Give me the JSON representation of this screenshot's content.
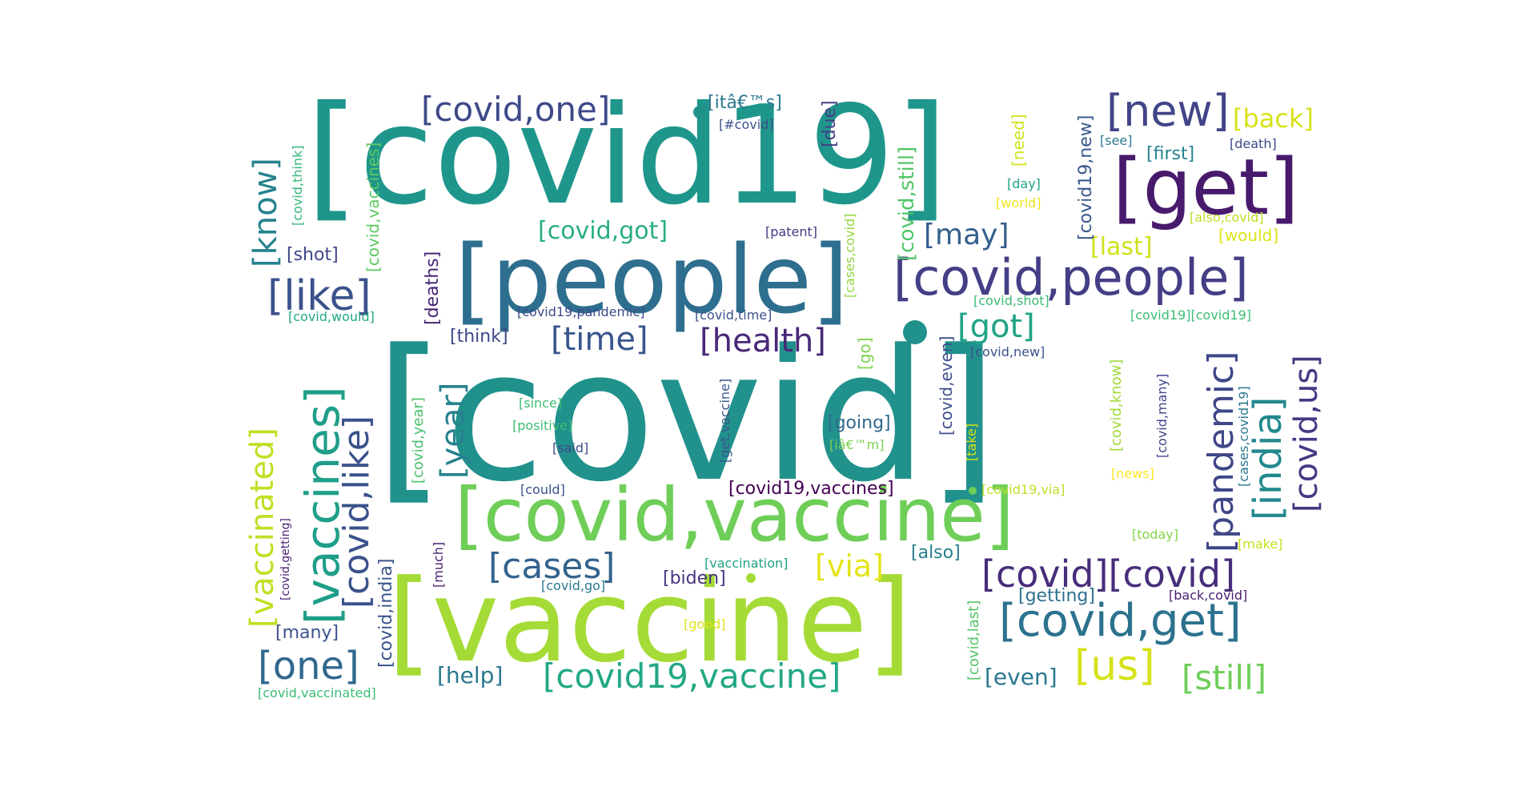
{
  "words": [
    {
      "text": "[covid]",
      "color": "#21918c"
    },
    {
      "text": "[covid19]",
      "color": "#1f968b"
    },
    {
      "text": "[vaccine]",
      "color": "#a5db36"
    },
    {
      "text": "[people]",
      "color": "#2e6e8e"
    },
    {
      "text": "[covid,vaccine]",
      "color": "#6ece58"
    },
    {
      "text": "[get]",
      "color": "#481a6c"
    },
    {
      "text": "[covid,people]",
      "color": "#433e85"
    },
    {
      "text": "[covid,get]",
      "color": "#2c728e"
    },
    {
      "text": "[covid][covid]",
      "color": "#472d7b"
    },
    {
      "text": "[new]",
      "color": "#414487"
    },
    {
      "text": "[like]",
      "color": "#3b528b"
    },
    {
      "text": "[covid,one]",
      "color": "#3e4989"
    },
    {
      "text": "[vaccines]",
      "color": "#1f9e89"
    },
    {
      "text": "[covid,like]",
      "color": "#3b528b"
    },
    {
      "text": "[covid19,vaccine]",
      "color": "#22a884"
    },
    {
      "text": "[one]",
      "color": "#31688e"
    },
    {
      "text": "[us]",
      "color": "#d5e21a"
    },
    {
      "text": "[still]",
      "color": "#6ece58"
    },
    {
      "text": "[cases]",
      "color": "#33638d"
    },
    {
      "text": "[health]",
      "color": "#482878"
    },
    {
      "text": "[time]",
      "color": "#39568c"
    },
    {
      "text": "[got]",
      "color": "#20a386"
    },
    {
      "text": "[may]",
      "color": "#355f8d"
    },
    {
      "text": "[via]",
      "color": "#e4e419"
    },
    {
      "text": "[india]",
      "color": "#23888e"
    },
    {
      "text": "[covid,us]",
      "color": "#443983"
    },
    {
      "text": "[pandemic]",
      "color": "#3f4788"
    },
    {
      "text": "[vaccinated]",
      "color": "#c2df23"
    },
    {
      "text": "[know]",
      "color": "#26828e"
    },
    {
      "text": "[year]",
      "color": "#26828e"
    },
    {
      "text": "[covid,got]",
      "color": "#29af7f"
    },
    {
      "text": "[back]",
      "color": "#d8e219"
    },
    {
      "text": "[last]",
      "color": "#d0e11c"
    },
    {
      "text": "[covid,still]",
      "color": "#52c569"
    },
    {
      "text": "[covid19,new]",
      "color": "#38598c"
    },
    {
      "text": "[due]",
      "color": "#424086"
    },
    {
      "text": "[help]",
      "color": "#2a788e"
    },
    {
      "text": "[even]",
      "color": "#2a788e"
    },
    {
      "text": "[covid,india]",
      "color": "#3a548c"
    },
    {
      "text": "[deaths]",
      "color": "#482475"
    },
    {
      "text": "[covid,vaccines]",
      "color": "#5ec962"
    },
    {
      "text": "[itâ€™s]",
      "color": "#2a788e"
    },
    {
      "text": "[biden]",
      "color": "#46337e"
    },
    {
      "text": "[covid19,vaccines]",
      "color": "#440154"
    },
    {
      "text": "[getting]",
      "color": "#2d708e"
    },
    {
      "text": "[going]",
      "color": "#31688e"
    },
    {
      "text": "[think]",
      "color": "#3e4989"
    },
    {
      "text": "[many]",
      "color": "#3b528b"
    },
    {
      "text": "[first]",
      "color": "#25848e"
    },
    {
      "text": "[shot]",
      "color": "#3f4788"
    },
    {
      "text": "[also]",
      "color": "#287d8e"
    },
    {
      "text": "[covid,year]",
      "color": "#4ac16d"
    },
    {
      "text": "[covid,even]",
      "color": "#3d4e8a"
    },
    {
      "text": "[covid,know]",
      "color": "#a0da39"
    },
    {
      "text": "[need]",
      "color": "#d2e21b"
    },
    {
      "text": "[would]",
      "color": "#dde318"
    },
    {
      "text": "[go]",
      "color": "#7fd34e"
    },
    {
      "text": "[covid,new]",
      "color": "#3b528b"
    },
    {
      "text": "[cases,covid]",
      "color": "#93d741"
    },
    {
      "text": "[covid,think]",
      "color": "#35b779"
    },
    {
      "text": "[covid,would]",
      "color": "#22a884"
    },
    {
      "text": "[covid19,pandemic]",
      "color": "#3e4a89"
    },
    {
      "text": "[covid,time]",
      "color": "#3b528b"
    },
    {
      "text": "[#covid]",
      "color": "#3b528b"
    },
    {
      "text": "[see]",
      "color": "#2a788e"
    },
    {
      "text": "[death]",
      "color": "#3e4989"
    },
    {
      "text": "[day]",
      "color": "#20a486"
    },
    {
      "text": "[world]",
      "color": "#f1e51d"
    },
    {
      "text": "[also,covid]",
      "color": "#bddf26"
    },
    {
      "text": "[patent]",
      "color": "#453781"
    },
    {
      "text": "[covid,shot]",
      "color": "#3dbc74"
    },
    {
      "text": "[covid19][covid19]",
      "color": "#3dbc74"
    },
    {
      "text": "[since]",
      "color": "#3dbc74"
    },
    {
      "text": "[positive]",
      "color": "#3dbc74"
    },
    {
      "text": "[said]",
      "color": "#3e4989"
    },
    {
      "text": "[could]",
      "color": "#3b528b"
    },
    {
      "text": "[iâ€™m]",
      "color": "#7ad151"
    },
    {
      "text": "[get,vaccine]",
      "color": "#39568c"
    },
    {
      "text": "[take]",
      "color": "#d5e21a"
    },
    {
      "text": "[covid,many]",
      "color": "#3f4788"
    },
    {
      "text": "[cases,covid19]",
      "color": "#2a788e"
    },
    {
      "text": "[news]",
      "color": "#fde725"
    },
    {
      "text": "[covid19,via]",
      "color": "#bddf26"
    },
    {
      "text": "[today]",
      "color": "#86d549"
    },
    {
      "text": "[make]",
      "color": "#c8e020"
    },
    {
      "text": "[vaccination]",
      "color": "#1fa187"
    },
    {
      "text": "[much]",
      "color": "#482173"
    },
    {
      "text": "[covid,go]",
      "color": "#2a788e"
    },
    {
      "text": "[good]",
      "color": "#dde318"
    },
    {
      "text": "[back,covid]",
      "color": "#481f70"
    },
    {
      "text": "[covid,last]",
      "color": "#54c568"
    },
    {
      "text": "[covid,getting]",
      "color": "#481f70"
    },
    {
      "text": "[covid,vaccinated]",
      "color": "#3dbc74"
    }
  ]
}
